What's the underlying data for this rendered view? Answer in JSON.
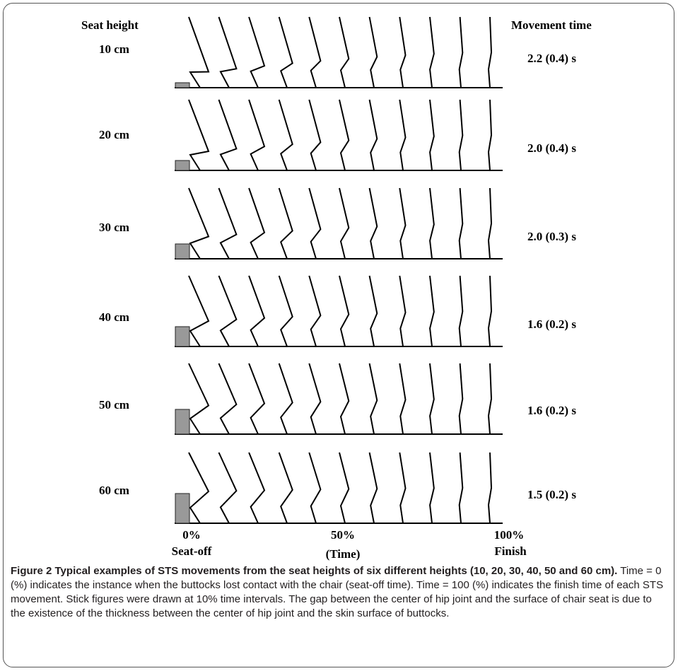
{
  "figure": {
    "left_header": "Seat height",
    "right_header": "Movement time",
    "rows": [
      {
        "seat_height": "10 cm",
        "movement_time": "2.2 (0.4) s",
        "seat_box_height": 10
      },
      {
        "seat_height": "20 cm",
        "movement_time": "2.0 (0.4) s",
        "seat_box_height": 20
      },
      {
        "seat_height": "30 cm",
        "movement_time": "2.0 (0.3) s",
        "seat_box_height": 30
      },
      {
        "seat_height": "40 cm",
        "movement_time": "1.6 (0.2) s",
        "seat_box_height": 40
      },
      {
        "seat_height": "50 cm",
        "movement_time": "1.6 (0.2) s",
        "seat_box_height": 50
      },
      {
        "seat_height": "60 cm",
        "movement_time": "1.5 (0.2) s",
        "seat_box_height": 60
      }
    ],
    "time_points_percent": [
      0,
      10,
      20,
      30,
      40,
      50,
      60,
      70,
      80,
      90,
      100
    ],
    "axis": {
      "start_percent": "0%",
      "start_label": "Seat-off",
      "mid_percent": "50%",
      "mid_label": "(Time)",
      "end_percent": "100%",
      "end_label": "Finish"
    },
    "colors": {
      "seat": "#999999",
      "stick": "#000000"
    }
  },
  "caption": {
    "bold_text": "Figure 2 Typical examples of STS movements from the seat heights of six different heights (10, 20, 30, 40, 50 and 60 cm).",
    "text": " Time = 0 (%) indicates the instance when the buttocks lost contact with the chair (seat-off time). Time = 100 (%) indicates the finish time of each STS movement. Stick figures were drawn at 10% time intervals. The gap between the center of hip joint and the surface of chair seat is due to the existence of the thickness between the center of hip joint and the skin surface of buttocks."
  }
}
